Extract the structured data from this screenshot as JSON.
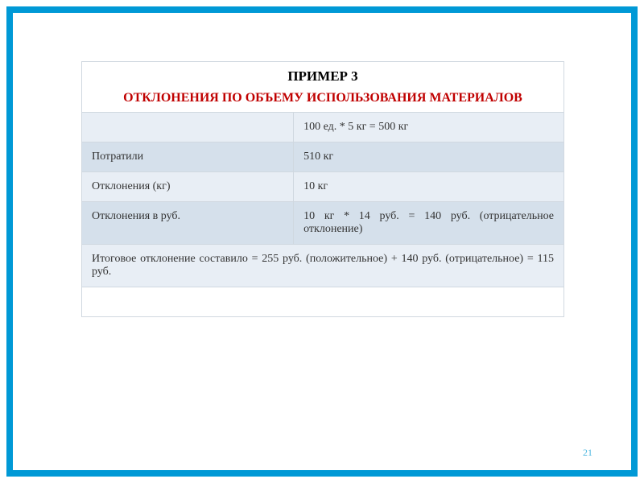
{
  "slide": {
    "border_color": "#0099d6",
    "background": "#ffffff"
  },
  "table": {
    "title": "ПРИМЕР 3",
    "subtitle": "ОТКЛОНЕНИЯ ПО ОБЪЕМУ ИСПОЛЬЗОВАНИЯ МАТЕРИАЛОВ",
    "title_color": "#000000",
    "subtitle_color": "#c00000",
    "title_fontsize": 17,
    "subtitle_fontsize": 16,
    "border_color": "#d0d8e0",
    "row_colors": {
      "light": "#e8eef5",
      "dark": "#d5e0eb",
      "white": "#ffffff"
    },
    "rows": [
      {
        "label": "",
        "value": "100 ед. * 5 кг = 500 кг",
        "bg": "light"
      },
      {
        "label": "Потратили",
        "value": "510 кг",
        "bg": "dark"
      },
      {
        "label": "Отклонения (кг)",
        "value": "10 кг",
        "bg": "light"
      },
      {
        "label": "Отклонения в руб.",
        "value": "10 кг * 14 руб. = 140 руб. (отрицательное отклонение)",
        "bg": "dark"
      }
    ],
    "summary": "Итоговое отклонение составило = 255 руб. (положительное) + 140 руб. (отрицательное) = 115 руб.",
    "cell_fontsize": 14,
    "text_color": "#333333",
    "col_widths": [
      "44%",
      "56%"
    ]
  },
  "page_number": "21",
  "page_number_color": "#4fb8e0"
}
